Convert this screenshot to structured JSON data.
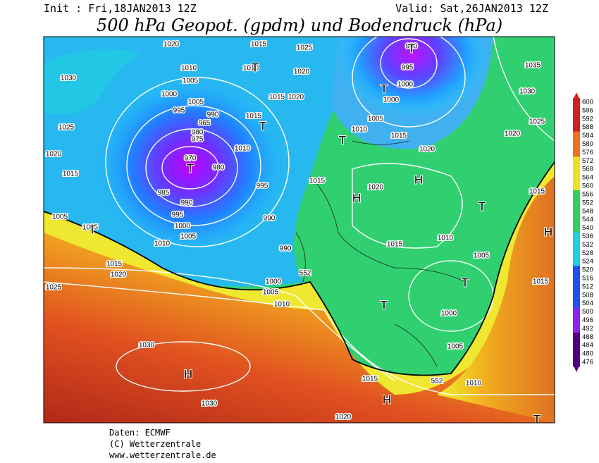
{
  "header": {
    "init": "Init : Fri,18JAN2013 12Z",
    "valid": "Valid: Sat,26JAN2013 12Z",
    "title": "500 hPa Geopot. (gpdm) und Bodendruck (hPa)"
  },
  "map": {
    "isobar_labels": [
      "1020",
      "1015",
      "1025",
      "1010",
      "1010",
      "1020",
      "1030",
      "1005",
      "1000",
      "1005",
      "1015",
      "1020",
      "995",
      "990",
      "965",
      "1015",
      "980",
      "975",
      "970",
      "980",
      "1010",
      "995",
      "985",
      "990",
      "995",
      "1000",
      "1005",
      "1010",
      "990",
      "990",
      "1015",
      "1020",
      "1025",
      "1000",
      "1005",
      "1010",
      "1030",
      "1030",
      "1015",
      "1020",
      "1035",
      "1030",
      "1025",
      "1020",
      "1020",
      "1015",
      "1010",
      "1005",
      "1000",
      "1000",
      "995",
      "980",
      "1015",
      "1020",
      "1015",
      "1010",
      "1005",
      "1015",
      "1015",
      "1000",
      "1005",
      "1010",
      "1005",
      "1005",
      "1015",
      "1020",
      "1025"
    ],
    "pressure_centers": [
      "T",
      "T",
      "T",
      "T",
      "T",
      "T",
      "T",
      "H",
      "H",
      "H",
      "H",
      "H",
      "T",
      "T",
      "T",
      "T"
    ],
    "contour_labels": [
      "552",
      "552"
    ]
  },
  "colorbar": {
    "ticks": [
      600,
      596,
      592,
      588,
      584,
      580,
      576,
      572,
      568,
      564,
      560,
      556,
      552,
      548,
      544,
      540,
      536,
      532,
      528,
      524,
      520,
      516,
      512,
      508,
      504,
      500,
      496,
      492,
      488,
      484,
      480,
      476
    ]
  },
  "footer": {
    "lines": [
      "Daten: ECMWF",
      "(C) Wetterzentrale",
      "www.wetterzentrale.de"
    ]
  }
}
